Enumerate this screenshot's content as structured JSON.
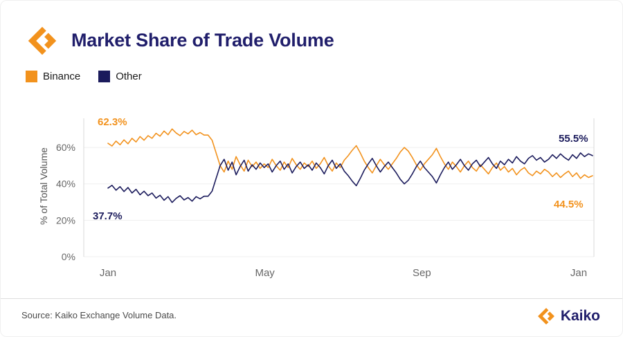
{
  "header": {
    "title": "Market Share of Trade Volume"
  },
  "colors": {
    "orange": "#F2921D",
    "navy": "#1B1B5C",
    "axis_text": "#666666",
    "grid": "#efefef",
    "border": "#d9d9d9"
  },
  "footer": {
    "source": "Source: Kaiko Exchange Volume Data.",
    "brand": "Kaiko"
  },
  "chart_data": {
    "type": "line",
    "title": "Market Share of Trade Volume",
    "xlabel": "",
    "ylabel": "% of Total Volume",
    "ylim": [
      0,
      76
    ],
    "grid": "horizontal",
    "legend_position": "top-left",
    "yticks": [
      {
        "value": 0,
        "label": "0%"
      },
      {
        "value": 20,
        "label": "20%"
      },
      {
        "value": 40,
        "label": "40%"
      },
      {
        "value": 60,
        "label": "60%"
      }
    ],
    "xticks": [
      {
        "frac": 0,
        "label": "Jan"
      },
      {
        "frac": 0.3333,
        "label": "May"
      },
      {
        "frac": 0.6667,
        "label": "Sep"
      },
      {
        "frac": 1,
        "label": "Jan"
      }
    ],
    "annotations": {
      "binance_start": {
        "text": "62.3%",
        "series": "Binance"
      },
      "other_start": {
        "text": "37.7%",
        "series": "Other"
      },
      "other_end": {
        "text": "55.5%",
        "series": "Other"
      },
      "binance_end": {
        "text": "44.5%",
        "series": "Binance"
      }
    },
    "series": [
      {
        "name": "Binance",
        "color": "#F2921D",
        "values": [
          62.3,
          60.8,
          63.5,
          61.5,
          64.2,
          62.0,
          65.0,
          63.0,
          66.0,
          64.0,
          66.5,
          65.0,
          67.8,
          66.2,
          69.0,
          67.0,
          70.2,
          68.0,
          66.5,
          68.8,
          67.5,
          69.5,
          67.0,
          68.2,
          66.8,
          66.8,
          64.0,
          57.0,
          50.0,
          46.5,
          52.5,
          48.0,
          55.0,
          50.5,
          47.0,
          53.0,
          49.5,
          52.0,
          48.5,
          51.0,
          49.0,
          53.5,
          50.0,
          47.5,
          52.0,
          49.0,
          54.0,
          50.5,
          48.0,
          51.5,
          49.5,
          52.5,
          48.5,
          51.0,
          54.5,
          50.0,
          47.0,
          51.5,
          49.0,
          53.0,
          55.5,
          58.5,
          61.0,
          57.0,
          52.5,
          49.0,
          46.0,
          50.0,
          53.5,
          50.5,
          48.0,
          51.0,
          54.0,
          57.5,
          60.0,
          58.0,
          54.5,
          50.5,
          47.5,
          51.0,
          53.5,
          56.0,
          59.5,
          55.0,
          51.0,
          48.0,
          52.0,
          49.5,
          46.5,
          50.0,
          52.5,
          49.0,
          47.0,
          50.5,
          48.0,
          45.5,
          49.0,
          51.5,
          47.5,
          49.5,
          46.5,
          48.5,
          45.0,
          47.5,
          49.0,
          46.0,
          44.5,
          47.0,
          45.5,
          48.0,
          46.5,
          44.0,
          46.0,
          43.5,
          45.5,
          47.0,
          44.0,
          46.0,
          43.0,
          45.0,
          43.5,
          44.5
        ]
      },
      {
        "name": "Other",
        "color": "#1B1B5C",
        "values": [
          37.7,
          39.2,
          36.5,
          38.5,
          35.8,
          38.0,
          35.0,
          37.0,
          34.0,
          36.0,
          33.5,
          35.0,
          32.2,
          33.8,
          31.0,
          33.0,
          29.8,
          32.0,
          33.5,
          31.2,
          32.5,
          30.5,
          33.0,
          31.8,
          33.2,
          33.2,
          36.0,
          43.0,
          50.0,
          53.5,
          47.5,
          52.0,
          45.0,
          49.5,
          53.0,
          47.0,
          50.5,
          48.0,
          51.5,
          49.0,
          51.0,
          46.5,
          50.0,
          52.5,
          48.0,
          51.0,
          46.0,
          49.5,
          52.0,
          48.5,
          50.5,
          47.5,
          51.5,
          49.0,
          45.5,
          50.0,
          53.0,
          48.5,
          51.0,
          47.0,
          44.5,
          41.5,
          39.0,
          43.0,
          47.5,
          51.0,
          54.0,
          50.0,
          46.5,
          49.5,
          52.0,
          49.0,
          46.0,
          42.5,
          40.0,
          42.0,
          45.5,
          49.5,
          52.5,
          49.0,
          46.5,
          44.0,
          40.5,
          45.0,
          49.0,
          52.0,
          48.0,
          50.5,
          53.5,
          50.0,
          47.5,
          51.0,
          53.0,
          49.5,
          52.0,
          54.5,
          51.0,
          48.5,
          52.5,
          50.5,
          53.5,
          51.5,
          55.0,
          52.5,
          51.0,
          54.0,
          55.5,
          53.0,
          54.5,
          52.0,
          53.5,
          56.0,
          54.0,
          56.5,
          54.5,
          53.0,
          56.0,
          54.0,
          57.0,
          55.0,
          56.5,
          55.5
        ]
      }
    ]
  }
}
